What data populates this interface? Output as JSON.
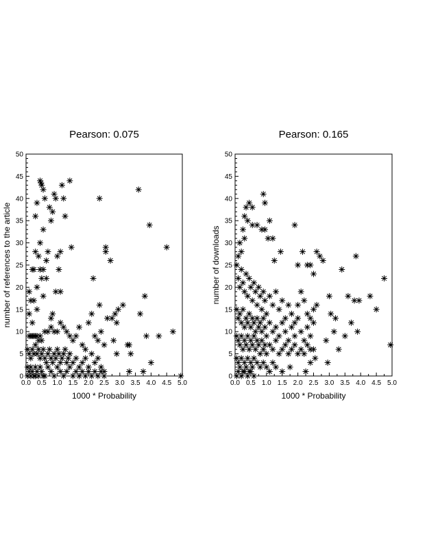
{
  "chart_data": [
    {
      "type": "scatter",
      "title": "Pearson: 0.075",
      "xlabel": "1000 * Probability",
      "ylabel": "number of references to the article",
      "xlim": [
        0,
        5
      ],
      "ylim": [
        0,
        50
      ],
      "xticks": [
        "0.0",
        "0.5",
        "1.0",
        "1.5",
        "2.0",
        "2.5",
        "3.0",
        "3.5",
        "4.0",
        "4.5",
        "5.0"
      ],
      "yticks": [
        "0",
        "5",
        "10",
        "15",
        "20",
        "25",
        "30",
        "35",
        "40",
        "45",
        "50"
      ],
      "marker": "*",
      "grid": false,
      "points": [
        [
          0.45,
          44
        ],
        [
          0.48,
          43.5
        ],
        [
          0.5,
          43
        ],
        [
          0.55,
          42
        ],
        [
          0.35,
          39
        ],
        [
          0.3,
          36
        ],
        [
          0.6,
          40
        ],
        [
          0.75,
          38
        ],
        [
          0.9,
          41
        ],
        [
          0.95,
          40
        ],
        [
          0.85,
          37
        ],
        [
          0.8,
          35
        ],
        [
          1.15,
          43
        ],
        [
          1.2,
          40
        ],
        [
          1.4,
          44
        ],
        [
          1.25,
          36
        ],
        [
          0.55,
          33
        ],
        [
          0.65,
          26
        ],
        [
          0.7,
          28
        ],
        [
          0.4,
          27
        ],
        [
          0.3,
          28
        ],
        [
          0.2,
          24
        ],
        [
          0.25,
          24
        ],
        [
          0.45,
          24
        ],
        [
          0.55,
          24
        ],
        [
          0.65,
          22
        ],
        [
          0.1,
          19
        ],
        [
          0.15,
          17
        ],
        [
          0.25,
          17
        ],
        [
          0.35,
          20
        ],
        [
          0.5,
          22
        ],
        [
          0.55,
          18
        ],
        [
          0.35,
          15
        ],
        [
          0.1,
          14
        ],
        [
          0.2,
          12
        ],
        [
          0.45,
          30
        ],
        [
          1.0,
          27
        ],
        [
          1.1,
          28
        ],
        [
          1.05,
          24
        ],
        [
          0.95,
          19
        ],
        [
          1.1,
          19
        ],
        [
          1.45,
          29
        ],
        [
          0.85,
          14
        ],
        [
          0.8,
          13
        ],
        [
          0.1,
          9
        ],
        [
          0.15,
          9
        ],
        [
          0.2,
          9
        ],
        [
          0.25,
          9
        ],
        [
          0.3,
          9
        ],
        [
          0.35,
          9
        ],
        [
          0.4,
          8
        ],
        [
          0.45,
          9
        ],
        [
          0.5,
          8
        ],
        [
          0.6,
          10
        ],
        [
          0.7,
          10
        ],
        [
          0.8,
          11
        ],
        [
          0.9,
          10
        ],
        [
          1.0,
          10
        ],
        [
          1.1,
          12
        ],
        [
          1.2,
          11
        ],
        [
          1.3,
          10
        ],
        [
          1.4,
          9
        ],
        [
          1.5,
          8
        ],
        [
          1.6,
          9
        ],
        [
          1.7,
          11
        ],
        [
          1.8,
          7
        ],
        [
          1.9,
          6
        ],
        [
          2.0,
          12
        ],
        [
          2.1,
          14
        ],
        [
          2.2,
          9
        ],
        [
          2.3,
          8
        ],
        [
          2.35,
          16
        ],
        [
          2.4,
          10
        ],
        [
          2.5,
          7
        ],
        [
          0.05,
          6
        ],
        [
          0.1,
          5
        ],
        [
          0.15,
          4
        ],
        [
          0.2,
          6
        ],
        [
          0.25,
          5
        ],
        [
          0.3,
          7
        ],
        [
          0.35,
          5
        ],
        [
          0.4,
          6
        ],
        [
          0.45,
          4
        ],
        [
          0.5,
          5
        ],
        [
          0.55,
          6
        ],
        [
          0.6,
          4
        ],
        [
          0.65,
          3
        ],
        [
          0.7,
          5
        ],
        [
          0.75,
          6
        ],
        [
          0.8,
          4
        ],
        [
          0.85,
          3
        ],
        [
          0.9,
          5
        ],
        [
          0.95,
          4
        ],
        [
          1.0,
          6
        ],
        [
          1.05,
          5
        ],
        [
          1.1,
          3
        ],
        [
          1.15,
          4
        ],
        [
          1.2,
          5
        ],
        [
          1.25,
          6
        ],
        [
          1.3,
          3
        ],
        [
          1.35,
          4
        ],
        [
          1.4,
          5
        ],
        [
          1.5,
          3
        ],
        [
          1.6,
          4
        ],
        [
          1.7,
          2
        ],
        [
          1.8,
          3
        ],
        [
          1.9,
          4
        ],
        [
          2.0,
          2
        ],
        [
          2.1,
          5
        ],
        [
          2.2,
          3
        ],
        [
          2.3,
          4
        ],
        [
          2.4,
          2
        ],
        [
          2.5,
          1
        ],
        [
          0.05,
          2
        ],
        [
          0.1,
          1
        ],
        [
          0.15,
          2
        ],
        [
          0.2,
          1
        ],
        [
          0.25,
          0
        ],
        [
          0.3,
          2
        ],
        [
          0.35,
          1
        ],
        [
          0.4,
          0
        ],
        [
          0.45,
          2
        ],
        [
          0.5,
          1
        ],
        [
          0.6,
          0
        ],
        [
          0.7,
          2
        ],
        [
          0.8,
          1
        ],
        [
          0.9,
          0
        ],
        [
          1.0,
          2
        ],
        [
          1.1,
          1
        ],
        [
          1.2,
          0
        ],
        [
          1.3,
          1
        ],
        [
          1.4,
          2
        ],
        [
          1.5,
          0
        ],
        [
          1.6,
          1
        ],
        [
          1.7,
          0
        ],
        [
          1.8,
          1
        ],
        [
          1.9,
          0
        ],
        [
          2.0,
          1
        ],
        [
          2.1,
          0
        ],
        [
          2.2,
          1
        ],
        [
          2.3,
          0
        ],
        [
          2.4,
          1
        ],
        [
          2.5,
          0
        ],
        [
          0.05,
          0
        ],
        [
          0.15,
          0
        ],
        [
          0.3,
          0
        ],
        [
          0.55,
          0
        ],
        [
          2.35,
          40
        ],
        [
          2.55,
          29
        ],
        [
          2.55,
          28
        ],
        [
          2.7,
          26
        ],
        [
          2.15,
          22
        ],
        [
          2.6,
          13
        ],
        [
          2.75,
          13
        ],
        [
          2.85,
          14
        ],
        [
          2.9,
          12
        ],
        [
          2.95,
          15
        ],
        [
          3.1,
          16
        ],
        [
          3.25,
          7
        ],
        [
          3.3,
          7
        ],
        [
          3.35,
          5
        ],
        [
          3.6,
          42
        ],
        [
          3.65,
          14
        ],
        [
          3.8,
          18
        ],
        [
          3.85,
          9
        ],
        [
          3.95,
          34
        ],
        [
          4.0,
          3
        ],
        [
          4.25,
          9
        ],
        [
          4.5,
          29
        ],
        [
          4.7,
          10
        ],
        [
          2.8,
          8
        ],
        [
          2.9,
          5
        ],
        [
          3.3,
          1
        ],
        [
          3.75,
          1
        ],
        [
          4.95,
          0
        ]
      ]
    },
    {
      "type": "scatter",
      "title": "Pearson: 0.165",
      "xlabel": "1000 * Probability",
      "ylabel": "number of downloads",
      "xlim": [
        0,
        5
      ],
      "ylim": [
        0,
        50
      ],
      "xticks": [
        "0.0",
        "0.5",
        "1.0",
        "1.5",
        "2.0",
        "2.5",
        "3.0",
        "3.5",
        "4.0",
        "4.5",
        "5.0"
      ],
      "yticks": [
        "0",
        "5",
        "10",
        "15",
        "20",
        "25",
        "30",
        "35",
        "40",
        "45",
        "50"
      ],
      "marker": "*",
      "grid": false,
      "points": [
        [
          0.9,
          41
        ],
        [
          0.95,
          39
        ],
        [
          0.45,
          39
        ],
        [
          0.35,
          38
        ],
        [
          0.55,
          38
        ],
        [
          0.3,
          36
        ],
        [
          0.4,
          35
        ],
        [
          0.55,
          34
        ],
        [
          0.85,
          33
        ],
        [
          0.95,
          33
        ],
        [
          0.7,
          34
        ],
        [
          1.1,
          35
        ],
        [
          1.05,
          31
        ],
        [
          1.2,
          31
        ],
        [
          0.25,
          33
        ],
        [
          0.2,
          28
        ],
        [
          0.3,
          31
        ],
        [
          0.15,
          30
        ],
        [
          0.1,
          27
        ],
        [
          1.9,
          34
        ],
        [
          1.25,
          26
        ],
        [
          1.45,
          28
        ],
        [
          2.15,
          28
        ],
        [
          2.3,
          25
        ],
        [
          2.4,
          25
        ],
        [
          2.6,
          28
        ],
        [
          2.7,
          27
        ],
        [
          2.8,
          26
        ],
        [
          2.5,
          23
        ],
        [
          2.0,
          25
        ],
        [
          3.4,
          24
        ],
        [
          3.6,
          18
        ],
        [
          3.8,
          17
        ],
        [
          3.85,
          27
        ],
        [
          3.95,
          17
        ],
        [
          4.3,
          18
        ],
        [
          4.5,
          15
        ],
        [
          4.75,
          22
        ],
        [
          4.95,
          7
        ],
        [
          3.5,
          9
        ],
        [
          3.3,
          6
        ],
        [
          3.7,
          12
        ],
        [
          3.9,
          10
        ],
        [
          3.0,
          18
        ],
        [
          3.05,
          14
        ],
        [
          3.2,
          13
        ],
        [
          2.9,
          8
        ],
        [
          3.15,
          10
        ],
        [
          2.95,
          3
        ],
        [
          0.05,
          25
        ],
        [
          0.1,
          22
        ],
        [
          0.15,
          20
        ],
        [
          0.2,
          24
        ],
        [
          0.25,
          21
        ],
        [
          0.3,
          19
        ],
        [
          0.35,
          23
        ],
        [
          0.4,
          18
        ],
        [
          0.45,
          22
        ],
        [
          0.5,
          20
        ],
        [
          0.55,
          17
        ],
        [
          0.6,
          21
        ],
        [
          0.65,
          19
        ],
        [
          0.7,
          16
        ],
        [
          0.75,
          20
        ],
        [
          0.8,
          18
        ],
        [
          0.85,
          15
        ],
        [
          0.9,
          19
        ],
        [
          0.95,
          17
        ],
        [
          1.0,
          14
        ],
        [
          1.1,
          18
        ],
        [
          1.2,
          16
        ],
        [
          1.3,
          19
        ],
        [
          1.4,
          15
        ],
        [
          1.5,
          17
        ],
        [
          1.6,
          13
        ],
        [
          1.7,
          16
        ],
        [
          1.8,
          14
        ],
        [
          1.9,
          12
        ],
        [
          2.0,
          16
        ],
        [
          2.1,
          19
        ],
        [
          2.2,
          17
        ],
        [
          2.3,
          14
        ],
        [
          2.4,
          13
        ],
        [
          2.5,
          15
        ],
        [
          2.6,
          16
        ],
        [
          0.05,
          15
        ],
        [
          0.1,
          13
        ],
        [
          0.15,
          14
        ],
        [
          0.2,
          12
        ],
        [
          0.25,
          15
        ],
        [
          0.3,
          11
        ],
        [
          0.35,
          13
        ],
        [
          0.4,
          12
        ],
        [
          0.45,
          14
        ],
        [
          0.5,
          11
        ],
        [
          0.55,
          13
        ],
        [
          0.6,
          12
        ],
        [
          0.65,
          10
        ],
        [
          0.7,
          13
        ],
        [
          0.75,
          11
        ],
        [
          0.8,
          12
        ],
        [
          0.85,
          10
        ],
        [
          0.9,
          13
        ],
        [
          0.95,
          11
        ],
        [
          1.0,
          9
        ],
        [
          1.1,
          12
        ],
        [
          1.2,
          10
        ],
        [
          1.3,
          11
        ],
        [
          1.4,
          9
        ],
        [
          1.5,
          12
        ],
        [
          1.6,
          10
        ],
        [
          1.7,
          8
        ],
        [
          1.8,
          11
        ],
        [
          1.9,
          9
        ],
        [
          2.0,
          13
        ],
        [
          2.1,
          10
        ],
        [
          2.2,
          8
        ],
        [
          2.3,
          11
        ],
        [
          2.4,
          9
        ],
        [
          2.5,
          12
        ],
        [
          0.05,
          9
        ],
        [
          0.1,
          8
        ],
        [
          0.15,
          7
        ],
        [
          0.2,
          9
        ],
        [
          0.25,
          6
        ],
        [
          0.3,
          8
        ],
        [
          0.35,
          7
        ],
        [
          0.4,
          9
        ],
        [
          0.45,
          6
        ],
        [
          0.5,
          8
        ],
        [
          0.55,
          7
        ],
        [
          0.6,
          9
        ],
        [
          0.65,
          6
        ],
        [
          0.7,
          8
        ],
        [
          0.75,
          7
        ],
        [
          0.8,
          5
        ],
        [
          0.85,
          8
        ],
        [
          0.9,
          6
        ],
        [
          0.95,
          7
        ],
        [
          1.0,
          5
        ],
        [
          1.1,
          7
        ],
        [
          1.2,
          6
        ],
        [
          1.3,
          8
        ],
        [
          1.4,
          5
        ],
        [
          1.5,
          6
        ],
        [
          1.6,
          7
        ],
        [
          1.7,
          5
        ],
        [
          1.8,
          6
        ],
        [
          1.9,
          7
        ],
        [
          2.0,
          5
        ],
        [
          2.1,
          6
        ],
        [
          2.2,
          5
        ],
        [
          2.3,
          7
        ],
        [
          2.4,
          6
        ],
        [
          2.5,
          6
        ],
        [
          1.5,
          1
        ],
        [
          1.75,
          2
        ],
        [
          2.25,
          1
        ],
        [
          2.4,
          3
        ],
        [
          2.55,
          4
        ],
        [
          0.05,
          4
        ],
        [
          0.1,
          3
        ],
        [
          0.15,
          2
        ],
        [
          0.2,
          4
        ],
        [
          0.25,
          1
        ],
        [
          0.3,
          3
        ],
        [
          0.35,
          2
        ],
        [
          0.4,
          4
        ],
        [
          0.45,
          1
        ],
        [
          0.5,
          3
        ],
        [
          0.55,
          2
        ],
        [
          0.6,
          4
        ],
        [
          0.7,
          3
        ],
        [
          0.8,
          2
        ],
        [
          0.9,
          3
        ],
        [
          1.0,
          2
        ],
        [
          1.1,
          1
        ],
        [
          1.2,
          3
        ],
        [
          1.3,
          2
        ],
        [
          0.05,
          0
        ],
        [
          0.1,
          1
        ],
        [
          0.2,
          0
        ],
        [
          0.3,
          1
        ],
        [
          0.4,
          0
        ],
        [
          0.5,
          1
        ],
        [
          0.6,
          0
        ]
      ]
    }
  ]
}
